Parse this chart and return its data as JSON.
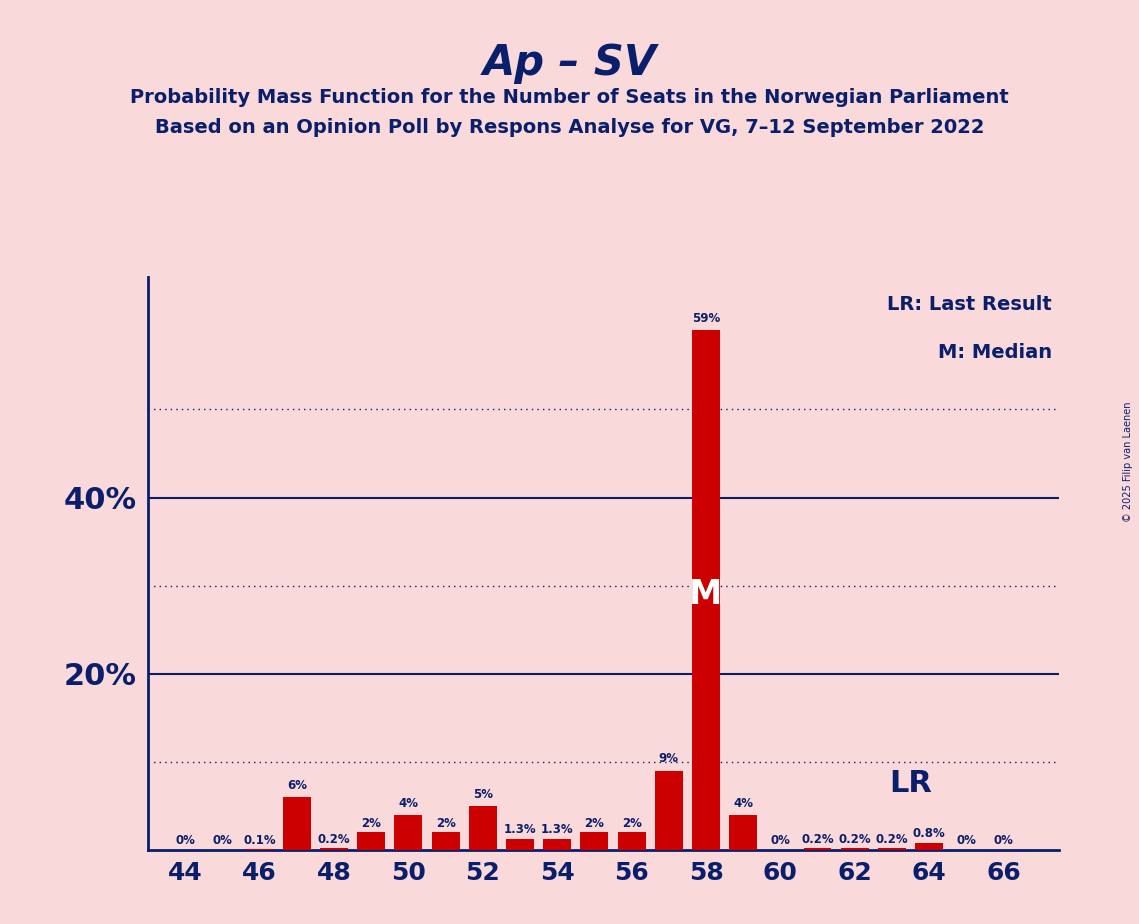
{
  "title": "Ap – SV",
  "subtitle1": "Probability Mass Function for the Number of Seats in the Norwegian Parliament",
  "subtitle2": "Based on an Opinion Poll by Respons Analyse for VG, 7–12 September 2022",
  "seats": [
    44,
    45,
    46,
    47,
    48,
    49,
    50,
    51,
    52,
    53,
    54,
    55,
    56,
    57,
    58,
    59,
    60,
    61,
    62,
    63,
    64,
    65,
    66
  ],
  "probabilities": [
    0.0,
    0.0,
    0.1,
    6.0,
    0.2,
    2.0,
    4.0,
    2.0,
    5.0,
    1.3,
    1.3,
    2.0,
    2.0,
    9.0,
    59.0,
    4.0,
    0.0,
    0.2,
    0.2,
    0.2,
    0.8,
    0.0,
    0.0
  ],
  "bar_color": "#cc0000",
  "background_color": "#f9d9d9",
  "title_color": "#0a1f6b",
  "axis_color": "#0a1f6b",
  "median_seat": 58,
  "last_result_seat": 59,
  "ylim": [
    0,
    65
  ],
  "copyright_text": "© 2025 Filip van Laenen",
  "legend_lr": "LR: Last Result",
  "legend_m": "M: Median",
  "lr_label": "LR",
  "m_label": "M",
  "xlabel_seats": [
    44,
    46,
    48,
    50,
    52,
    54,
    56,
    58,
    60,
    62,
    64,
    66
  ],
  "solid_grid": [
    20,
    40
  ],
  "dotted_grid": [
    10,
    30,
    50
  ],
  "ytick_positions": [
    20,
    40
  ],
  "ytick_labels": [
    "20%",
    "40%"
  ]
}
